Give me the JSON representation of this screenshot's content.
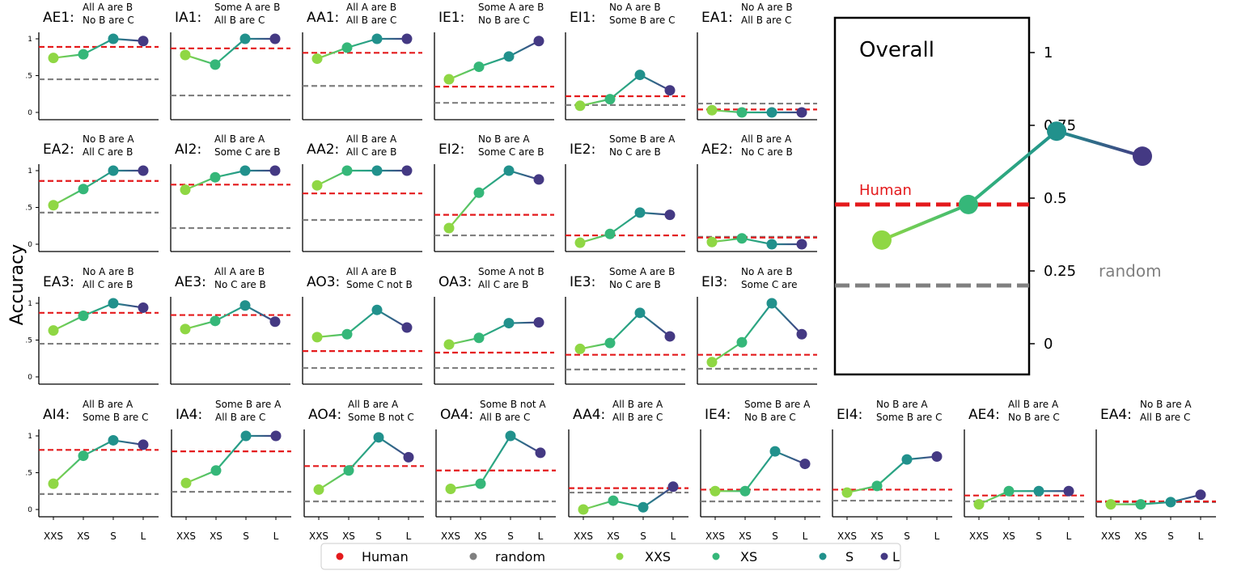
{
  "chart_data": {
    "type": "line",
    "ylabel": "Accuracy",
    "categories": [
      "XXS",
      "XS",
      "S",
      "L"
    ],
    "ytick_labels": [
      "0",
      ".5",
      "1"
    ],
    "ylim": [
      -0.05,
      1.05
    ],
    "colors": {
      "XXS": "#8fd744",
      "XS": "#35b779",
      "S": "#21918c",
      "L": "#443983",
      "Human": "#e41a1c",
      "random": "#808080"
    },
    "panels": [
      {
        "code": "AE1:",
        "premise1": "All A are B",
        "premise2": "No B are C",
        "values": [
          0.74,
          0.79,
          1.0,
          0.97
        ],
        "human": 0.89,
        "random": 0.45
      },
      {
        "code": "IA1:",
        "premise1": "Some A are B",
        "premise2": "All B are C",
        "values": [
          0.78,
          0.65,
          1.0,
          1.0
        ],
        "human": 0.87,
        "random": 0.23
      },
      {
        "code": "AA1:",
        "premise1": "All A are B",
        "premise2": "All B are C",
        "values": [
          0.73,
          0.88,
          1.0,
          1.0
        ],
        "human": 0.81,
        "random": 0.36
      },
      {
        "code": "IE1:",
        "premise1": "Some A are B",
        "premise2": "No B are C",
        "values": [
          0.45,
          0.62,
          0.76,
          0.97
        ],
        "human": 0.35,
        "random": 0.13
      },
      {
        "code": "EI1:",
        "premise1": "No A are B",
        "premise2": "Some B are C",
        "values": [
          0.09,
          0.18,
          0.51,
          0.3
        ],
        "human": 0.22,
        "random": 0.1
      },
      {
        "code": "EA1:",
        "premise1": "No A are B",
        "premise2": "All B are C",
        "values": [
          0.03,
          0.0,
          0.0,
          0.0
        ],
        "human": 0.04,
        "random": 0.12
      },
      {
        "code": "EA2:",
        "premise1": "No B are A",
        "premise2": "All C are B",
        "values": [
          0.53,
          0.75,
          1.0,
          1.0
        ],
        "human": 0.86,
        "random": 0.43
      },
      {
        "code": "AI2:",
        "premise1": "All B are A",
        "premise2": "Some C are B",
        "values": [
          0.74,
          0.91,
          1.0,
          1.0
        ],
        "human": 0.81,
        "random": 0.22
      },
      {
        "code": "AA2:",
        "premise1": "All B are A",
        "premise2": "All C are B",
        "values": [
          0.8,
          1.0,
          1.0,
          1.0
        ],
        "human": 0.69,
        "random": 0.33
      },
      {
        "code": "EI2:",
        "premise1": "No B are A",
        "premise2": "Some C are B",
        "values": [
          0.22,
          0.7,
          1.0,
          0.88
        ],
        "human": 0.4,
        "random": 0.12
      },
      {
        "code": "IE2:",
        "premise1": "Some B are A",
        "premise2": "No C are B",
        "values": [
          0.02,
          0.14,
          0.43,
          0.4
        ],
        "human": 0.12,
        "random": 0.12
      },
      {
        "code": "AE2:",
        "premise1": "All B are A",
        "premise2": "No C are B",
        "values": [
          0.03,
          0.08,
          0.0,
          0.0
        ],
        "human": 0.09,
        "random": 0.1
      },
      {
        "code": "EA3:",
        "premise1": "No A are B",
        "premise2": "All C are B",
        "values": [
          0.63,
          0.83,
          1.0,
          0.94
        ],
        "human": 0.87,
        "random": 0.45
      },
      {
        "code": "AE3:",
        "premise1": "All A are B",
        "premise2": "No C are B",
        "values": [
          0.65,
          0.76,
          0.97,
          0.75
        ],
        "human": 0.84,
        "random": 0.45
      },
      {
        "code": "AO3:",
        "premise1": "All A are B",
        "premise2": "Some C not B",
        "values": [
          0.54,
          0.58,
          0.91,
          0.67
        ],
        "human": 0.35,
        "random": 0.12
      },
      {
        "code": "OA3:",
        "premise1": "Some A not B",
        "premise2": "All C are B",
        "values": [
          0.44,
          0.53,
          0.73,
          0.74
        ],
        "human": 0.33,
        "random": 0.12
      },
      {
        "code": "IE3:",
        "premise1": "Some A are B",
        "premise2": "No C are B",
        "values": [
          0.38,
          0.46,
          0.87,
          0.55
        ],
        "human": 0.3,
        "random": 0.1
      },
      {
        "code": "EI3:",
        "premise1": "No A are B",
        "premise2": "Some C are",
        "values": [
          0.2,
          0.47,
          1.0,
          0.58
        ],
        "human": 0.3,
        "random": 0.11
      },
      {
        "code": "AI4:",
        "premise1": "All B are A",
        "premise2": "Some B are C",
        "values": [
          0.35,
          0.73,
          0.94,
          0.88
        ],
        "human": 0.81,
        "random": 0.21
      },
      {
        "code": "IA4:",
        "premise1": "Some B are A",
        "premise2": "All B are C",
        "values": [
          0.36,
          0.53,
          1.0,
          1.0
        ],
        "human": 0.79,
        "random": 0.24
      },
      {
        "code": "AO4:",
        "premise1": "All B are A",
        "premise2": "Some B not C",
        "values": [
          0.27,
          0.53,
          0.98,
          0.71
        ],
        "human": 0.59,
        "random": 0.11
      },
      {
        "code": "OA4:",
        "premise1": "Some B not A",
        "premise2": "All B are C",
        "values": [
          0.28,
          0.35,
          1.0,
          0.77
        ],
        "human": 0.53,
        "random": 0.11
      },
      {
        "code": "AA4:",
        "premise1": "All B are A",
        "premise2": "All B are C",
        "values": [
          0.0,
          0.12,
          0.03,
          0.31
        ],
        "human": 0.29,
        "random": 0.23
      },
      {
        "code": "IE4:",
        "premise1": "Some B are A",
        "premise2": "No B are C",
        "values": [
          0.25,
          0.25,
          0.79,
          0.62
        ],
        "human": 0.27,
        "random": 0.11
      },
      {
        "code": "EI4:",
        "premise1": "No B are A",
        "premise2": "Some B are C",
        "values": [
          0.23,
          0.32,
          0.68,
          0.72
        ],
        "human": 0.27,
        "random": 0.12
      },
      {
        "code": "AE4:",
        "premise1": "All B are A",
        "premise2": "No B are C",
        "values": [
          0.07,
          0.25,
          0.25,
          0.25
        ],
        "human": 0.19,
        "random": 0.11
      },
      {
        "code": "EA4:",
        "premise1": "No B are A",
        "premise2": "All B are C",
        "values": [
          0.07,
          0.07,
          0.1,
          0.2
        ],
        "human": 0.11,
        "random": 0.1
      }
    ],
    "overall": {
      "title": "Overall",
      "values": [
        0.356,
        0.478,
        0.73,
        0.644
      ],
      "human": 0.478,
      "random": 0.2,
      "human_label": "Human",
      "random_label": "random",
      "ytick_labels": [
        "0",
        "0.25",
        "0.5",
        "0.75",
        "1"
      ],
      "yticks": [
        0,
        0.25,
        0.5,
        0.75,
        1
      ]
    },
    "legend": {
      "position": "bottom-center",
      "items": [
        "Human",
        "random",
        "XXS",
        "XS",
        "S",
        "L"
      ]
    }
  }
}
